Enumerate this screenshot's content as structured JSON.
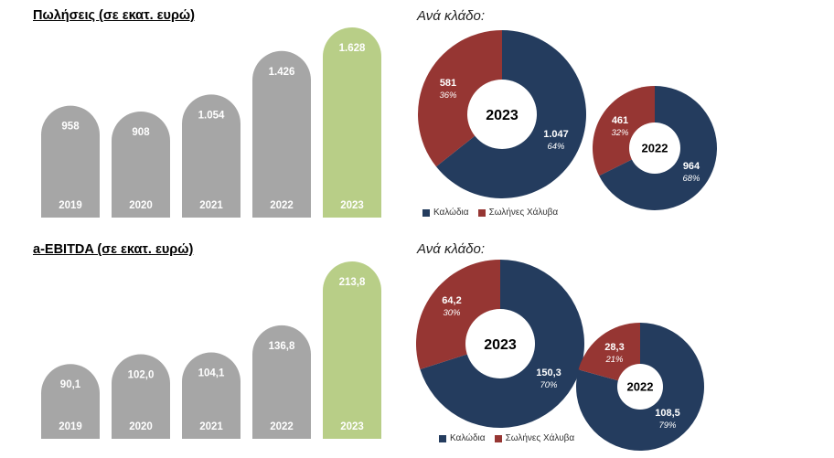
{
  "colors": {
    "bar_grey": "#a6a6a6",
    "bar_green": "#b8ce87",
    "navy": "#243c5e",
    "red": "#963633",
    "white": "#ffffff"
  },
  "sales": {
    "title": "Πωλήσεις (σε εκατ. ευρώ)",
    "subtitle": "Ανά κλάδο:"
  },
  "ebitda": {
    "title": "a-EBITDA (σε εκατ. ευρώ)",
    "subtitle": "Ανά κλάδο:"
  },
  "legend": {
    "cables": "Καλώδια",
    "steel": "Σωλήνες Χάλυβα"
  },
  "chart_data": [
    {
      "type": "bar",
      "title": "Πωλήσεις (σε εκατ. ευρώ)",
      "categories": [
        "2019",
        "2020",
        "2021",
        "2022",
        "2023"
      ],
      "values": [
        958,
        908,
        1054,
        1426,
        1628
      ],
      "value_labels": [
        "958",
        "908",
        "1.054",
        "1.426",
        "1.628"
      ],
      "highlight": "2023",
      "grid": false
    },
    {
      "type": "pie",
      "subtitle": "Ανά κλάδο:",
      "center_label": "2023",
      "labels": [
        "Καλώδια",
        "Σωλήνες Χάλυβα"
      ],
      "values": [
        1047,
        581
      ],
      "value_labels": [
        "1.047",
        "581"
      ],
      "percent_labels": [
        "64%",
        "36%"
      ]
    },
    {
      "type": "pie",
      "center_label": "2022",
      "labels": [
        "Καλώδια",
        "Σωλήνες Χάλυβα"
      ],
      "values": [
        964,
        461
      ],
      "value_labels": [
        "964",
        "461"
      ],
      "percent_labels": [
        "68%",
        "32%"
      ]
    },
    {
      "type": "bar",
      "title": "a-EBITDA (σε εκατ. ευρώ)",
      "categories": [
        "2019",
        "2020",
        "2021",
        "2022",
        "2023"
      ],
      "values": [
        90.1,
        102.0,
        104.1,
        136.8,
        213.8
      ],
      "value_labels": [
        "90,1",
        "102,0",
        "104,1",
        "136,8",
        "213,8"
      ],
      "highlight": "2023",
      "grid": false
    },
    {
      "type": "pie",
      "subtitle": "Ανά κλάδο:",
      "center_label": "2023",
      "labels": [
        "Καλώδια",
        "Σωλήνες Χάλυβα"
      ],
      "values": [
        150.3,
        64.2
      ],
      "value_labels": [
        "150,3",
        "64,2"
      ],
      "percent_labels": [
        "70%",
        "30%"
      ]
    },
    {
      "type": "pie",
      "center_label": "2022",
      "labels": [
        "Καλώδια",
        "Σωλήνες Χάλυβα"
      ],
      "values": [
        108.5,
        28.3
      ],
      "value_labels": [
        "108,5",
        "28,3"
      ],
      "percent_labels": [
        "79%",
        "21%"
      ]
    }
  ]
}
